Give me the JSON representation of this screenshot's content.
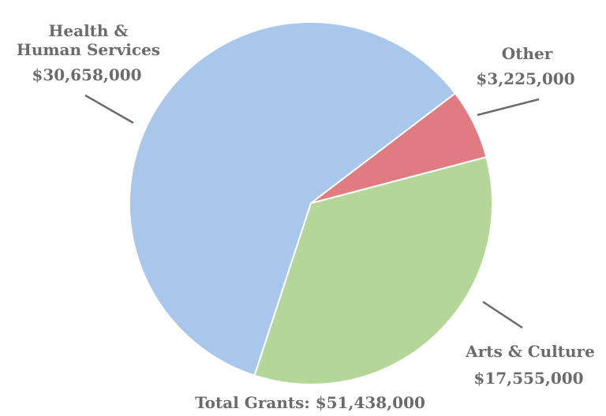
{
  "chart_data": {
    "type": "pie",
    "title": "",
    "slices": [
      {
        "label": [
          "Health &",
          "Human Services"
        ],
        "value_label": "$30,658,000",
        "value": 30658000,
        "color": "#a9c7ea"
      },
      {
        "label": [
          "Other"
        ],
        "value_label": "$3,225,000",
        "value": 3225000,
        "color": "#e17b82"
      },
      {
        "label": [
          "Arts & Culture"
        ],
        "value_label": "$17,555,000",
        "value": 17555000,
        "color": "#b4d698"
      }
    ],
    "total_label": "Total Grants: $51,438,000",
    "total": 51438000
  }
}
